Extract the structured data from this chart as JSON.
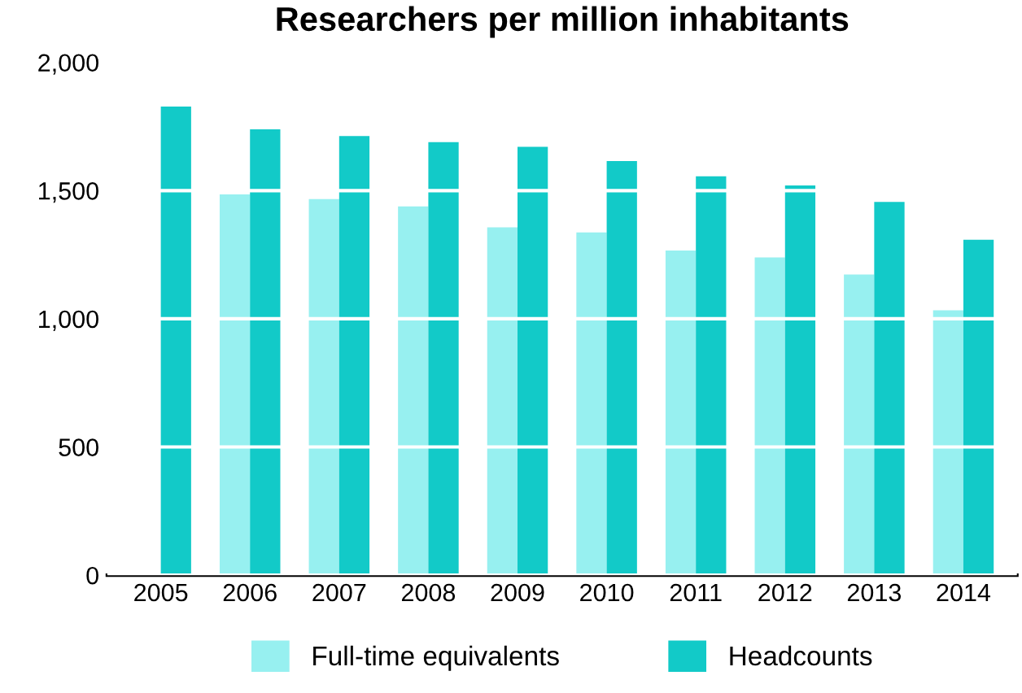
{
  "chart_data": {
    "type": "bar",
    "title": "Researchers per million inhabitants",
    "categories": [
      "2005",
      "2006",
      "2007",
      "2008",
      "2009",
      "2010",
      "2011",
      "2012",
      "2013",
      "2014"
    ],
    "series": [
      {
        "name": "Full-time equivalents",
        "color": "#97f0f0",
        "values": [
          null,
          1485,
          1467,
          1438,
          1357,
          1337,
          1266,
          1239,
          1173,
          1033
        ]
      },
      {
        "name": "Headcounts",
        "color": "#12cac8",
        "values": [
          1828,
          1739,
          1713,
          1689,
          1671,
          1615,
          1556,
          1520,
          1456,
          1308
        ]
      }
    ],
    "ylim": [
      0,
      2000
    ],
    "yticks": [
      {
        "value": 0,
        "label": "0"
      },
      {
        "value": 500,
        "label": "500"
      },
      {
        "value": 1000,
        "label": "1,000"
      },
      {
        "value": 1500,
        "label": "1,500"
      },
      {
        "value": 2000,
        "label": "2,000"
      }
    ],
    "grid": "y",
    "legend": "bottom"
  }
}
